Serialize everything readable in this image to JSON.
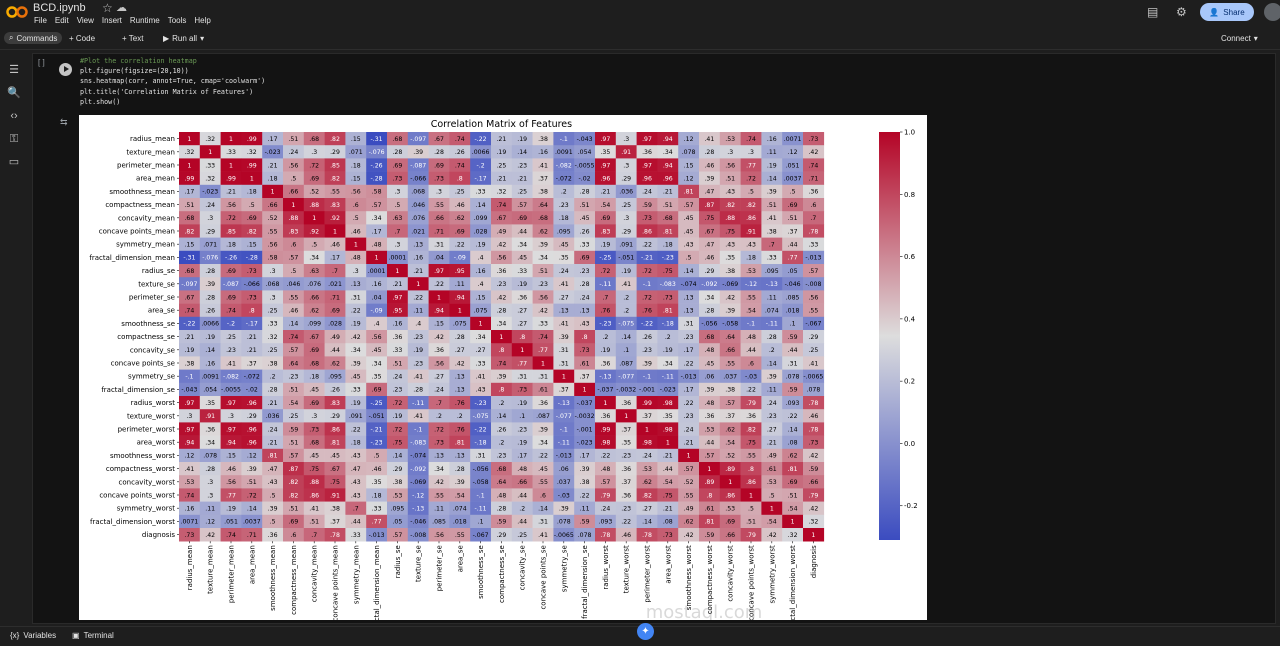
{
  "app": {
    "filename": "BCD.ipynb",
    "menus": [
      "File",
      "Edit",
      "View",
      "Insert",
      "Runtime",
      "Tools",
      "Help"
    ],
    "share_label": "Share"
  },
  "toolbar": {
    "commands_label": "Commands",
    "code_label": "+ Code",
    "text_label": "+ Text",
    "runall_label": "Run all",
    "connect_label": "Connect"
  },
  "cell": {
    "bracket": "[ ]",
    "code_lines": [
      "#Plot the correlation heatmap",
      "plt.figure(figsize=(20,10))",
      "sns.heatmap(corr, annot=True, cmap='coolwarm')",
      "plt.title('Correlation Matrix of Features')",
      "plt.show()"
    ]
  },
  "statusbar": {
    "variables_label": "Variables",
    "terminal_label": "Terminal"
  },
  "watermark": {
    "text": "mostaql.com"
  },
  "colors": {
    "heat_low": "#3b4cc0",
    "heat_mid": "#dddddd",
    "heat_high": "#b40426",
    "accent": "#a8c7fa"
  },
  "chart_data": {
    "type": "heatmap",
    "title": "Correlation Matrix of Features",
    "labels": [
      "radius_mean",
      "texture_mean",
      "perimeter_mean",
      "area_mean",
      "smoothness_mean",
      "compactness_mean",
      "concavity_mean",
      "concave points_mean",
      "symmetry_mean",
      "fractal_dimension_mean",
      "radius_se",
      "texture_se",
      "perimeter_se",
      "area_se",
      "smoothness_se",
      "compactness_se",
      "concavity_se",
      "concave points_se",
      "symmetry_se",
      "fractal_dimension_se",
      "radius_worst",
      "texture_worst",
      "perimeter_worst",
      "area_worst",
      "smoothness_worst",
      "compactness_worst",
      "concavity_worst",
      "concave points_worst",
      "symmetry_worst",
      "fractal_dimension_worst",
      "diagnosis"
    ],
    "matrix": [
      [
        1,
        0.32,
        1,
        0.99,
        0.17,
        0.51,
        0.68,
        0.82,
        0.15,
        -0.31,
        0.68,
        -0.097,
        0.67,
        0.74,
        -0.22,
        0.21,
        0.19,
        0.38,
        -0.1,
        -0.043,
        0.97,
        0.3,
        0.97,
        0.94,
        0.12,
        0.41,
        0.53,
        0.74,
        0.16,
        0.0071,
        0.73
      ],
      [
        0.32,
        1,
        0.33,
        0.32,
        -0.023,
        0.24,
        0.3,
        0.29,
        0.071,
        -0.076,
        0.28,
        0.39,
        0.28,
        0.26,
        0.0066,
        0.19,
        0.14,
        0.16,
        0.0091,
        0.054,
        0.35,
        0.91,
        0.36,
        0.34,
        0.078,
        0.28,
        0.3,
        0.3,
        0.11,
        0.12,
        0.42
      ],
      [
        1,
        0.33,
        1,
        0.99,
        0.21,
        0.56,
        0.72,
        0.85,
        0.18,
        -0.26,
        0.69,
        -0.087,
        0.69,
        0.74,
        -0.2,
        0.25,
        0.23,
        0.41,
        -0.082,
        -0.0055,
        0.97,
        0.3,
        0.97,
        0.94,
        0.15,
        0.46,
        0.56,
        0.77,
        0.19,
        0.051,
        0.74
      ],
      [
        0.99,
        0.32,
        0.99,
        1,
        0.18,
        0.5,
        0.69,
        0.82,
        0.15,
        -0.28,
        0.73,
        -0.066,
        0.73,
        0.8,
        -0.17,
        0.21,
        0.21,
        0.37,
        -0.072,
        -0.02,
        0.96,
        0.29,
        0.96,
        0.96,
        0.12,
        0.39,
        0.51,
        0.72,
        0.14,
        0.0037,
        0.71
      ],
      [
        0.17,
        -0.023,
        0.21,
        0.18,
        1,
        0.66,
        0.52,
        0.55,
        0.56,
        0.58,
        0.3,
        0.068,
        0.3,
        0.25,
        0.33,
        0.32,
        0.25,
        0.38,
        0.2,
        0.28,
        0.21,
        0.036,
        0.24,
        0.21,
        0.81,
        0.47,
        0.43,
        0.5,
        0.39,
        0.5,
        0.36
      ],
      [
        0.51,
        0.24,
        0.56,
        0.5,
        0.66,
        1,
        0.88,
        0.83,
        0.6,
        0.57,
        0.5,
        0.046,
        0.55,
        0.46,
        0.14,
        0.74,
        0.57,
        0.64,
        0.23,
        0.51,
        0.54,
        0.25,
        0.59,
        0.51,
        0.57,
        0.87,
        0.82,
        0.82,
        0.51,
        0.69,
        0.6
      ],
      [
        0.68,
        0.3,
        0.72,
        0.69,
        0.52,
        0.88,
        1,
        0.92,
        0.5,
        0.34,
        0.63,
        0.076,
        0.66,
        0.62,
        0.099,
        0.67,
        0.69,
        0.68,
        0.18,
        0.45,
        0.69,
        0.3,
        0.73,
        0.68,
        0.45,
        0.75,
        0.88,
        0.86,
        0.41,
        0.51,
        0.7
      ],
      [
        0.82,
        0.29,
        0.85,
        0.82,
        0.55,
        0.83,
        0.92,
        1,
        0.46,
        0.17,
        0.7,
        0.021,
        0.71,
        0.69,
        0.028,
        0.49,
        0.44,
        0.62,
        0.095,
        0.26,
        0.83,
        0.29,
        0.86,
        0.81,
        0.45,
        0.67,
        0.75,
        0.91,
        0.38,
        0.37,
        0.78
      ],
      [
        0.15,
        0.071,
        0.18,
        0.15,
        0.56,
        0.6,
        0.5,
        0.46,
        1,
        0.48,
        0.3,
        0.13,
        0.31,
        0.22,
        0.19,
        0.42,
        0.34,
        0.39,
        0.45,
        0.33,
        0.19,
        0.091,
        0.22,
        0.18,
        0.43,
        0.47,
        0.43,
        0.43,
        0.7,
        0.44,
        0.33
      ],
      [
        -0.31,
        -0.076,
        -0.26,
        -0.28,
        0.58,
        0.57,
        0.34,
        0.17,
        0.48,
        1,
        0.0001,
        0.16,
        0.04,
        -0.09,
        0.4,
        0.56,
        0.45,
        0.34,
        0.35,
        0.69,
        -0.25,
        -0.051,
        -0.21,
        -0.23,
        0.5,
        0.46,
        0.35,
        0.18,
        0.33,
        0.77,
        -0.013
      ],
      [
        0.68,
        0.28,
        0.69,
        0.73,
        0.3,
        0.5,
        0.63,
        0.7,
        0.3,
        0.0001,
        1,
        0.21,
        0.97,
        0.95,
        0.16,
        0.36,
        0.33,
        0.51,
        0.24,
        0.23,
        0.72,
        0.19,
        0.72,
        0.75,
        0.14,
        0.29,
        0.38,
        0.53,
        0.095,
        0.05,
        0.57
      ],
      [
        -0.097,
        0.39,
        -0.087,
        -0.066,
        0.068,
        0.046,
        0.076,
        0.021,
        0.13,
        0.16,
        0.21,
        1,
        0.22,
        0.11,
        0.4,
        0.23,
        0.19,
        0.23,
        0.41,
        0.28,
        -0.11,
        0.41,
        -0.1,
        -0.083,
        -0.074,
        -0.092,
        -0.069,
        -0.12,
        -0.13,
        -0.046,
        -0.008
      ],
      [
        0.67,
        0.28,
        0.69,
        0.73,
        0.3,
        0.55,
        0.66,
        0.71,
        0.31,
        0.04,
        0.97,
        0.22,
        1,
        0.94,
        0.15,
        0.42,
        0.36,
        0.56,
        0.27,
        0.24,
        0.7,
        0.2,
        0.72,
        0.73,
        0.13,
        0.34,
        0.42,
        0.55,
        0.11,
        0.085,
        0.56
      ],
      [
        0.74,
        0.26,
        0.74,
        0.8,
        0.25,
        0.46,
        0.62,
        0.69,
        0.22,
        -0.09,
        0.95,
        0.11,
        0.94,
        1,
        0.075,
        0.28,
        0.27,
        0.42,
        0.13,
        0.13,
        0.76,
        0.2,
        0.76,
        0.81,
        0.13,
        0.28,
        0.39,
        0.54,
        0.074,
        0.018,
        0.55
      ],
      [
        -0.22,
        0.0066,
        -0.2,
        -0.17,
        0.33,
        0.14,
        0.099,
        0.028,
        0.19,
        0.4,
        0.16,
        0.4,
        0.15,
        0.075,
        1,
        0.34,
        0.27,
        0.33,
        0.41,
        0.43,
        -0.23,
        -0.075,
        -0.22,
        -0.18,
        0.31,
        -0.056,
        -0.058,
        -0.1,
        -0.11,
        0.1,
        -0.067
      ],
      [
        0.21,
        0.19,
        0.25,
        0.21,
        0.32,
        0.74,
        0.67,
        0.49,
        0.42,
        0.56,
        0.36,
        0.23,
        0.42,
        0.28,
        0.34,
        1,
        0.8,
        0.74,
        0.39,
        0.8,
        0.2,
        0.14,
        0.26,
        0.2,
        0.23,
        0.68,
        0.64,
        0.48,
        0.28,
        0.59,
        0.29
      ],
      [
        0.19,
        0.14,
        0.23,
        0.21,
        0.25,
        0.57,
        0.69,
        0.44,
        0.34,
        0.45,
        0.33,
        0.19,
        0.36,
        0.27,
        0.27,
        0.8,
        1,
        0.77,
        0.31,
        0.73,
        0.19,
        0.1,
        0.23,
        0.19,
        0.17,
        0.48,
        0.66,
        0.44,
        0.2,
        0.44,
        0.25
      ],
      [
        0.38,
        0.16,
        0.41,
        0.37,
        0.38,
        0.64,
        0.68,
        0.62,
        0.39,
        0.34,
        0.51,
        0.23,
        0.56,
        0.42,
        0.33,
        0.74,
        0.77,
        1,
        0.31,
        0.61,
        0.36,
        0.087,
        0.39,
        0.34,
        0.22,
        0.45,
        0.55,
        0.6,
        0.14,
        0.31,
        0.41
      ],
      [
        -0.1,
        0.0091,
        -0.082,
        -0.072,
        0.2,
        0.23,
        0.18,
        0.095,
        0.45,
        0.35,
        0.24,
        0.41,
        0.27,
        0.13,
        0.41,
        0.39,
        0.31,
        0.31,
        1,
        0.37,
        -0.13,
        -0.077,
        -0.1,
        -0.11,
        -0.013,
        0.06,
        0.037,
        -0.03,
        0.39,
        0.078,
        -0.0065
      ],
      [
        -0.043,
        0.054,
        -0.0055,
        -0.02,
        0.28,
        0.51,
        0.45,
        0.26,
        0.33,
        0.69,
        0.23,
        0.28,
        0.24,
        0.13,
        0.43,
        0.8,
        0.73,
        0.61,
        0.37,
        1,
        -0.037,
        -0.0032,
        -0.001,
        -0.023,
        0.17,
        0.39,
        0.38,
        0.22,
        0.11,
        0.59,
        0.078
      ],
      [
        0.97,
        0.35,
        0.97,
        0.96,
        0.21,
        0.54,
        0.69,
        0.83,
        0.19,
        -0.25,
        0.72,
        -0.11,
        0.7,
        0.76,
        -0.23,
        0.2,
        0.19,
        0.36,
        -0.13,
        -0.037,
        1,
        0.36,
        0.99,
        0.98,
        0.22,
        0.48,
        0.57,
        0.79,
        0.24,
        0.093,
        0.78
      ],
      [
        0.3,
        0.91,
        0.3,
        0.29,
        0.036,
        0.25,
        0.3,
        0.29,
        0.091,
        -0.051,
        0.19,
        0.41,
        0.2,
        0.2,
        -0.075,
        0.14,
        0.1,
        0.087,
        -0.077,
        -0.0032,
        0.36,
        1,
        0.37,
        0.35,
        0.23,
        0.36,
        0.37,
        0.36,
        0.23,
        0.22,
        0.46
      ],
      [
        0.97,
        0.36,
        0.97,
        0.96,
        0.24,
        0.59,
        0.73,
        0.86,
        0.22,
        -0.21,
        0.72,
        -0.1,
        0.72,
        0.76,
        -0.22,
        0.26,
        0.23,
        0.39,
        -0.1,
        -0.001,
        0.99,
        0.37,
        1,
        0.98,
        0.24,
        0.53,
        0.62,
        0.82,
        0.27,
        0.14,
        0.78
      ],
      [
        0.94,
        0.34,
        0.94,
        0.96,
        0.21,
        0.51,
        0.68,
        0.81,
        0.18,
        -0.23,
        0.75,
        -0.083,
        0.73,
        0.81,
        -0.18,
        0.2,
        0.19,
        0.34,
        -0.11,
        -0.023,
        0.98,
        0.35,
        0.98,
        1,
        0.21,
        0.44,
        0.54,
        0.75,
        0.21,
        0.08,
        0.73
      ],
      [
        0.12,
        0.078,
        0.15,
        0.12,
        0.81,
        0.57,
        0.45,
        0.45,
        0.43,
        0.5,
        0.14,
        -0.074,
        0.13,
        0.13,
        0.31,
        0.23,
        0.17,
        0.22,
        -0.013,
        0.17,
        0.22,
        0.23,
        0.24,
        0.21,
        1,
        0.57,
        0.52,
        0.55,
        0.49,
        0.62,
        0.42
      ],
      [
        0.41,
        0.28,
        0.46,
        0.39,
        0.47,
        0.87,
        0.75,
        0.67,
        0.47,
        0.46,
        0.29,
        -0.092,
        0.34,
        0.28,
        -0.056,
        0.68,
        0.48,
        0.45,
        0.06,
        0.39,
        0.48,
        0.36,
        0.53,
        0.44,
        0.57,
        1,
        0.89,
        0.8,
        0.61,
        0.81,
        0.59
      ],
      [
        0.53,
        0.3,
        0.56,
        0.51,
        0.43,
        0.82,
        0.88,
        0.75,
        0.43,
        0.35,
        0.38,
        -0.069,
        0.42,
        0.39,
        -0.058,
        0.64,
        0.66,
        0.55,
        0.037,
        0.38,
        0.57,
        0.37,
        0.62,
        0.54,
        0.52,
        0.89,
        1,
        0.86,
        0.53,
        0.69,
        0.66
      ],
      [
        0.74,
        0.3,
        0.77,
        0.72,
        0.5,
        0.82,
        0.86,
        0.91,
        0.43,
        0.18,
        0.53,
        -0.12,
        0.55,
        0.54,
        -0.1,
        0.48,
        0.44,
        0.6,
        -0.03,
        0.22,
        0.79,
        0.36,
        0.82,
        0.75,
        0.55,
        0.8,
        0.86,
        1,
        0.5,
        0.51,
        0.79
      ],
      [
        0.16,
        0.11,
        0.19,
        0.14,
        0.39,
        0.51,
        0.41,
        0.38,
        0.7,
        0.33,
        0.095,
        -0.13,
        0.11,
        0.074,
        -0.11,
        0.28,
        0.2,
        0.14,
        0.39,
        0.11,
        0.24,
        0.23,
        0.27,
        0.21,
        0.49,
        0.61,
        0.53,
        0.5,
        1,
        0.54,
        0.42
      ],
      [
        0.0071,
        0.12,
        0.051,
        0.0037,
        0.5,
        0.69,
        0.51,
        0.37,
        0.44,
        0.77,
        0.05,
        -0.046,
        0.085,
        0.018,
        0.1,
        0.59,
        0.44,
        0.31,
        0.078,
        0.59,
        0.093,
        0.22,
        0.14,
        0.08,
        0.62,
        0.81,
        0.69,
        0.51,
        0.54,
        1,
        0.32
      ],
      [
        0.73,
        0.42,
        0.74,
        0.71,
        0.36,
        0.6,
        0.7,
        0.78,
        0.33,
        -0.013,
        0.57,
        -0.008,
        0.56,
        0.55,
        -0.067,
        0.29,
        0.25,
        0.41,
        -0.0065,
        0.078,
        0.78,
        0.46,
        0.78,
        0.73,
        0.42,
        0.59,
        0.66,
        0.79,
        0.42,
        0.32,
        1
      ]
    ],
    "colorbar_ticks": [
      "1.0",
      "0.8",
      "0.6",
      "0.4",
      "0.2",
      "0.0",
      "-0.2"
    ],
    "colorbar_range": [
      -0.31,
      1.0
    ]
  }
}
